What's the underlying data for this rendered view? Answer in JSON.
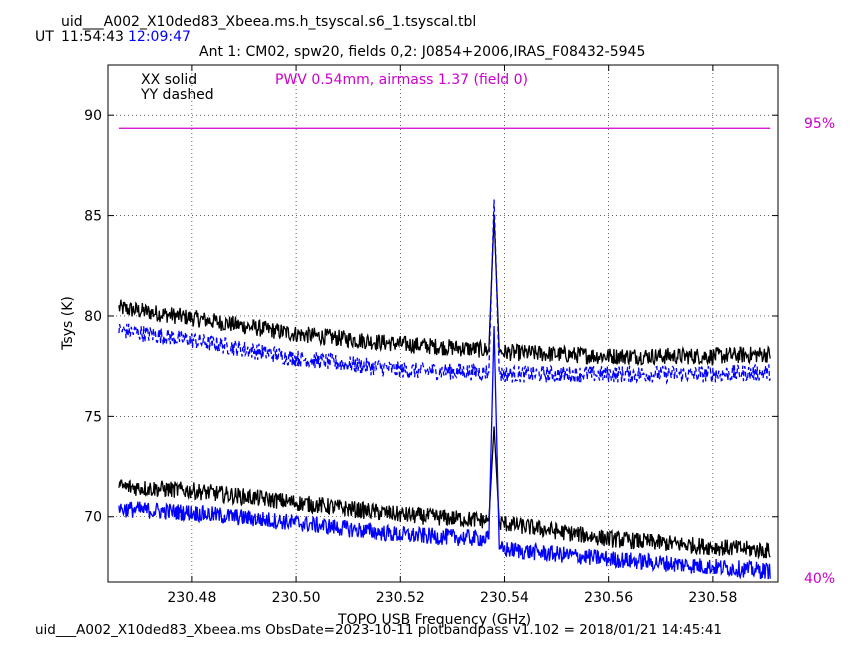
{
  "header": {
    "filename": "uid___A002_X10ded83_Xbeea.ms.h_tsyscal.s6_1.tsyscal.tbl",
    "ut_label": "UT",
    "time_start": "11:54:43",
    "time_end": "12:09:47",
    "subtitle": "Ant 1: CM02,  spw20,  fields 0,2: J0854+2006,IRAS_F08432-5945"
  },
  "legend": {
    "xx": "XX solid",
    "yy": "YY dashed",
    "pwv": "PWV 0.54mm, airmass 1.37 (field 0)"
  },
  "footer": "uid___A002_X10ded83_Xbeea.ms  ObsDate=2023-10-11   plotbandpass v1.102 = 2018/01/21 14:45:41",
  "colors": {
    "xx": "#000000",
    "yy": "#0000ff",
    "atm": "#cc00cc",
    "time_end": "#0000ff"
  },
  "chart_data": {
    "type": "line",
    "xlabel": "TOPO USB Frequency (GHz)",
    "ylabel": "Tsys (K)",
    "xlim": [
      230.4639,
      230.5925
    ],
    "ylim": [
      66.75,
      92.5
    ],
    "xticks": [
      "230.48",
      "230.50",
      "230.52",
      "230.54",
      "230.56",
      "230.58"
    ],
    "xtick_values": [
      230.48,
      230.5,
      230.52,
      230.54,
      230.56,
      230.58
    ],
    "yticks": [
      "70",
      "75",
      "80",
      "85",
      "90"
    ],
    "ytick_values": [
      70,
      75,
      80,
      85,
      90
    ],
    "grid": true,
    "right_axis": {
      "top_label": "95%",
      "bottom_label": "40%"
    },
    "spike_x": 230.538,
    "series": [
      {
        "name": "XX solid",
        "pol": "XX",
        "color": "#000000",
        "dash": false,
        "x": [
          230.466,
          230.48,
          230.5,
          230.52,
          230.537,
          230.538,
          230.539,
          230.56,
          230.58,
          230.591
        ],
        "y": [
          80.4,
          79.9,
          79.1,
          78.6,
          78.3,
          85.0,
          78.2,
          78.0,
          78.0,
          78.1
        ]
      },
      {
        "name": "YY dashed",
        "pol": "YY",
        "color": "#0000ff",
        "dash": true,
        "x": [
          230.466,
          230.48,
          230.5,
          230.52,
          230.537,
          230.538,
          230.539,
          230.56,
          230.58,
          230.591
        ],
        "y": [
          79.3,
          78.8,
          77.9,
          77.3,
          77.2,
          85.8,
          77.1,
          77.1,
          77.1,
          77.2
        ]
      },
      {
        "name": "XX solid",
        "pol": "XX",
        "color": "#000000",
        "dash": false,
        "x": [
          230.466,
          230.48,
          230.5,
          230.52,
          230.537,
          230.538,
          230.539,
          230.56,
          230.58,
          230.591
        ],
        "y": [
          71.5,
          71.3,
          70.7,
          70.1,
          69.8,
          74.5,
          69.7,
          68.9,
          68.5,
          68.3
        ]
      },
      {
        "name": "YY dashed",
        "pol": "YY",
        "color": "#0000ff",
        "dash": false,
        "x": [
          230.466,
          230.48,
          230.5,
          230.52,
          230.537,
          230.538,
          230.539,
          230.56,
          230.58,
          230.591
        ],
        "y": [
          70.4,
          70.2,
          69.7,
          69.1,
          68.9,
          79.5,
          68.4,
          67.9,
          67.5,
          67.3
        ]
      }
    ],
    "atm_series": {
      "color": "#cc00cc",
      "x": [
        230.466,
        230.591
      ],
      "y": [
        89.35,
        89.35
      ]
    }
  }
}
